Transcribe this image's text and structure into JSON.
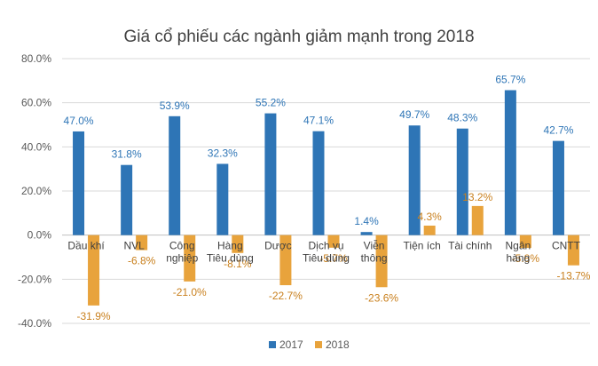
{
  "chart_data": {
    "type": "bar",
    "title": "Giá cổ phiếu các ngành giảm mạnh trong 2018",
    "xlabel": "",
    "ylabel": "",
    "ylim": [
      -40,
      80
    ],
    "y_ticks": [
      "80.0%",
      "60.0%",
      "40.0%",
      "20.0%",
      "0.0%",
      "-20.0%",
      "-40.0%"
    ],
    "grid": true,
    "legend_position": "bottom",
    "categories": [
      [
        "Dầu khí"
      ],
      [
        "NVL"
      ],
      [
        "Công",
        "nghiệp"
      ],
      [
        "Hàng",
        "Tiêu dùng"
      ],
      [
        "Dược"
      ],
      [
        "Dịch vụ",
        "Tiêu dùng"
      ],
      [
        "Viễn",
        "thông"
      ],
      [
        "Tiện ích"
      ],
      [
        "Tài chính"
      ],
      [
        "Ngân",
        "hàng"
      ],
      [
        "CNTT"
      ]
    ],
    "series": [
      {
        "name": "2017",
        "color": "#2e75b6",
        "values": [
          47.0,
          31.8,
          53.9,
          32.3,
          55.2,
          47.1,
          1.4,
          49.7,
          48.3,
          65.7,
          42.7
        ],
        "labels": [
          "47.0%",
          "31.8%",
          "53.9%",
          "32.3%",
          "55.2%",
          "47.1%",
          "1.4%",
          "49.7%",
          "48.3%",
          "65.7%",
          "42.7%"
        ]
      },
      {
        "name": "2018",
        "color": "#e8a33c",
        "values": [
          -31.9,
          -6.8,
          -21.0,
          -8.1,
          -22.7,
          -5.7,
          -23.6,
          4.3,
          13.2,
          -5.8,
          -13.7
        ],
        "labels": [
          "-31.9%",
          "-6.8%",
          "-21.0%",
          "-8.1%",
          "-22.7%",
          "-5.7%",
          "-23.6%",
          "4.3%",
          "13.2%",
          "-5.8%",
          "-13.7%"
        ]
      }
    ]
  }
}
